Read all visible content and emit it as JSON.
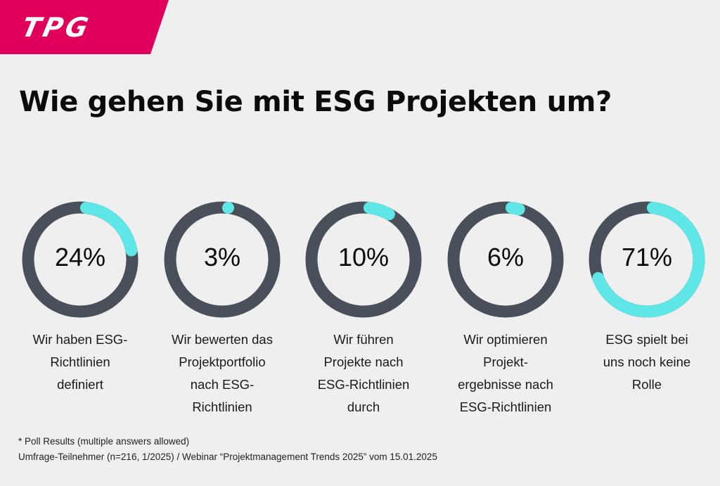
{
  "brand": {
    "logo_text": "TPG",
    "color": "#e0005b"
  },
  "title": "Wie gehen Sie mit ESG Projekten um?",
  "chart_data": {
    "type": "donut",
    "colors": {
      "filled": "#5fe6e6",
      "track": "#4a5059"
    },
    "items": [
      {
        "value": 24,
        "label_text": "24%",
        "lines": [
          "Wir haben ESG-",
          "Richtlinien",
          "definiert"
        ]
      },
      {
        "value": 3,
        "label_text": "3%",
        "lines": [
          "Wir bewerten das",
          "Projektportfolio",
          "nach ESG-",
          "Richtlinien"
        ]
      },
      {
        "value": 10,
        "label_text": "10%",
        "lines": [
          "Wir führen",
          "Projekte nach",
          "ESG-Richtlinien",
          "durch"
        ]
      },
      {
        "value": 6,
        "label_text": "6%",
        "lines": [
          "Wir optimieren",
          "Projekt-",
          "ergebnisse nach",
          "ESG-Richtlinien"
        ]
      },
      {
        "value": 71,
        "label_text": "71%",
        "lines": [
          "ESG spielt bei",
          "uns noch keine",
          "Rolle"
        ]
      }
    ]
  },
  "footer": {
    "note": "* Poll Results (multiple answers allowed)",
    "source": "Umfrage-Teilnehmer (n=216, 1/2025) / Webinar “Projektmanagement Trends 2025” vom 15.01.2025"
  }
}
